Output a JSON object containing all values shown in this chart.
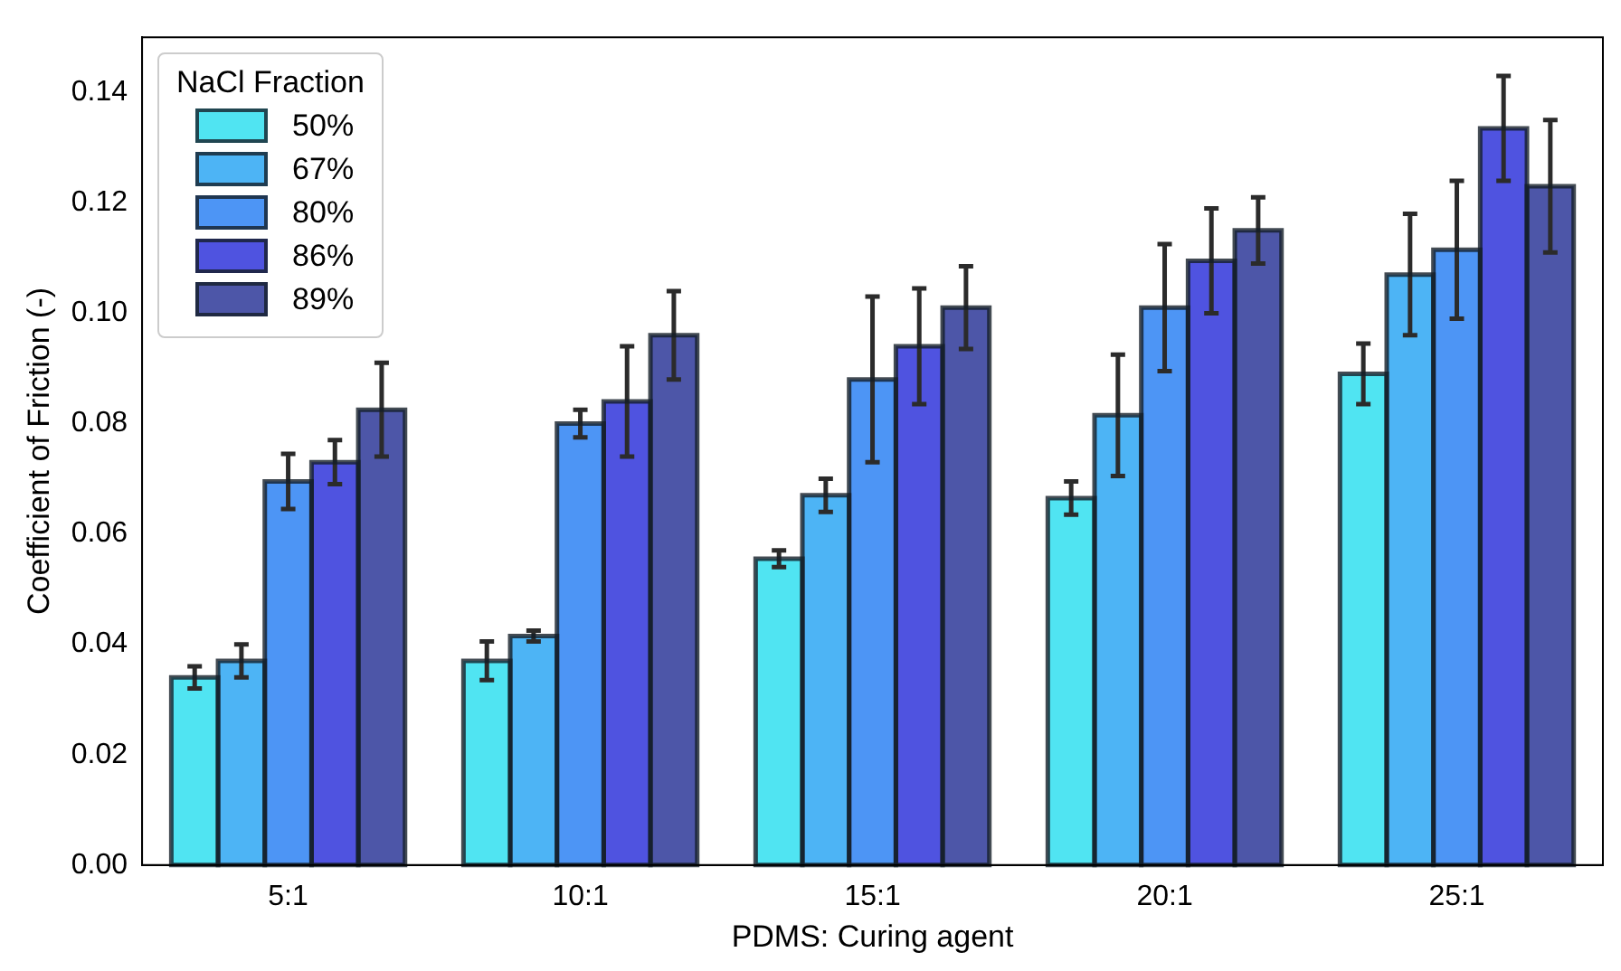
{
  "chart_data": {
    "type": "bar",
    "xlabel": "PDMS: Curing agent",
    "ylabel": "Coefficient of Friction (-)",
    "legend_title": "NaCl Fraction",
    "legend": "top left",
    "categories": [
      "5:1",
      "10:1",
      "15:1",
      "20:1",
      "25:1"
    ],
    "series": [
      {
        "name": "50%",
        "color": "#50e4f2",
        "values": [
          0.034,
          0.037,
          0.0555,
          0.0665,
          0.089
        ],
        "errors": [
          0.002,
          0.0035,
          0.0015,
          0.003,
          0.0055
        ]
      },
      {
        "name": "67%",
        "color": "#4db4f5",
        "values": [
          0.037,
          0.0415,
          0.067,
          0.0815,
          0.107
        ],
        "errors": [
          0.003,
          0.001,
          0.003,
          0.011,
          0.011
        ]
      },
      {
        "name": "80%",
        "color": "#4d95f5",
        "values": [
          0.0695,
          0.08,
          0.088,
          0.101,
          0.1115
        ],
        "errors": [
          0.005,
          0.0025,
          0.015,
          0.0115,
          0.0125
        ]
      },
      {
        "name": "86%",
        "color": "#4f53e0",
        "values": [
          0.073,
          0.084,
          0.094,
          0.1095,
          0.1335
        ],
        "errors": [
          0.004,
          0.01,
          0.0105,
          0.0095,
          0.0095
        ]
      },
      {
        "name": "89%",
        "color": "#4d56a8",
        "values": [
          0.0825,
          0.096,
          0.101,
          0.115,
          0.123
        ],
        "errors": [
          0.0085,
          0.008,
          0.0075,
          0.006,
          0.012
        ]
      }
    ],
    "ylim": [
      0,
      0.15
    ],
    "yticks": [
      {
        "value": 0,
        "label": "0.00"
      },
      {
        "value": 0.02,
        "label": "0.02"
      },
      {
        "value": 0.04,
        "label": "0.04"
      },
      {
        "value": 0.06,
        "label": "0.06"
      },
      {
        "value": 0.08,
        "label": "0.08"
      },
      {
        "value": 0.1,
        "label": "0.10"
      },
      {
        "value": 0.12,
        "label": "0.12"
      },
      {
        "value": 0.14,
        "label": "0.14"
      }
    ],
    "grid": false
  }
}
